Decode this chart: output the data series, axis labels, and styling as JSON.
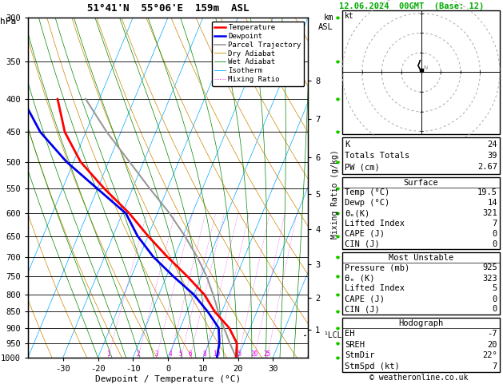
{
  "title_left": "51°41'N  55°06'E  159m  ASL",
  "title_right": "12.06.2024  00GMT  (Base: 12)",
  "xlabel": "Dewpoint / Temperature (°C)",
  "pressure_levels": [
    300,
    350,
    400,
    450,
    500,
    550,
    600,
    650,
    700,
    750,
    800,
    850,
    900,
    950,
    1000
  ],
  "pressure_labels": [
    "300",
    "350",
    "400",
    "450",
    "500",
    "550",
    "600",
    "650",
    "700",
    "750",
    "800",
    "850",
    "900",
    "950",
    "1000"
  ],
  "temp_xticks": [
    -30,
    -20,
    -10,
    0,
    10,
    20,
    30
  ],
  "km_p_map": {
    "1": 907,
    "2": 808,
    "3": 718,
    "4": 635,
    "5": 560,
    "6": 492,
    "7": 430,
    "8": 375
  },
  "lcl_pressure": 925,
  "mixing_ratio_values": [
    1,
    2,
    3,
    4,
    5,
    6,
    8,
    10,
    15,
    20,
    25
  ],
  "temp_profile_T": [
    19.5,
    18.0,
    14.0,
    8.0,
    3.0,
    -4.0,
    -12.0,
    -20.0,
    -28.0,
    -38.0,
    -48.0,
    -56.0,
    -62.0
  ],
  "temp_profile_P": [
    1000,
    950,
    900,
    850,
    800,
    750,
    700,
    650,
    600,
    550,
    500,
    450,
    400
  ],
  "dewp_profile_T": [
    14.0,
    13.0,
    11.0,
    6.0,
    0.0,
    -8.0,
    -16.0,
    -23.0,
    -29.0,
    -40.0,
    -52.0,
    -63.0,
    -72.0
  ],
  "dewp_profile_P": [
    1000,
    950,
    900,
    850,
    800,
    750,
    700,
    650,
    600,
    550,
    500,
    450,
    400
  ],
  "parcel_T": [
    19.5,
    16.0,
    12.5,
    9.0,
    5.5,
    1.5,
    -3.5,
    -9.5,
    -16.5,
    -25.0,
    -34.0,
    -44.0,
    -54.0
  ],
  "parcel_P": [
    1000,
    950,
    900,
    850,
    800,
    750,
    700,
    650,
    600,
    550,
    500,
    450,
    400
  ],
  "stats": {
    "K": 24,
    "Totals_Totals": 39,
    "PW_cm": 2.67,
    "Surface_Temp": 19.5,
    "Surface_Dewp": 14,
    "Surface_ThetaE": 321,
    "Surface_LI": 7,
    "Surface_CAPE": 0,
    "Surface_CIN": 0,
    "MU_Pressure": 925,
    "MU_ThetaE": 323,
    "MU_LI": 5,
    "MU_CAPE": 0,
    "MU_CIN": 0,
    "Hodo_EH": -7,
    "Hodo_SREH": 20,
    "Hodo_StmDir": "22°",
    "Hodo_StmSpd": 7
  },
  "colors": {
    "temperature": "#ff0000",
    "dewpoint": "#0000ee",
    "parcel": "#999999",
    "dry_adiabat": "#cc8800",
    "wet_adiabat": "#008800",
    "isotherm": "#00aaff",
    "mixing_ratio": "#ee00ee",
    "background": "#ffffff"
  },
  "legend_entries": [
    [
      "Temperature",
      "#ff0000",
      "-",
      1.8
    ],
    [
      "Dewpoint",
      "#0000ee",
      "-",
      1.8
    ],
    [
      "Parcel Trajectory",
      "#999999",
      "-",
      1.2
    ],
    [
      "Dry Adiabat",
      "#cc8800",
      "-",
      0.6
    ],
    [
      "Wet Adiabat",
      "#008800",
      "-",
      0.6
    ],
    [
      "Isotherm",
      "#00aaff",
      "-",
      0.6
    ],
    [
      "Mixing Ratio",
      "#ee00ee",
      ":",
      0.6
    ]
  ],
  "skew_factor": 1.0,
  "T_min": -40,
  "T_max": 40,
  "P_min": 300,
  "P_max": 1000
}
